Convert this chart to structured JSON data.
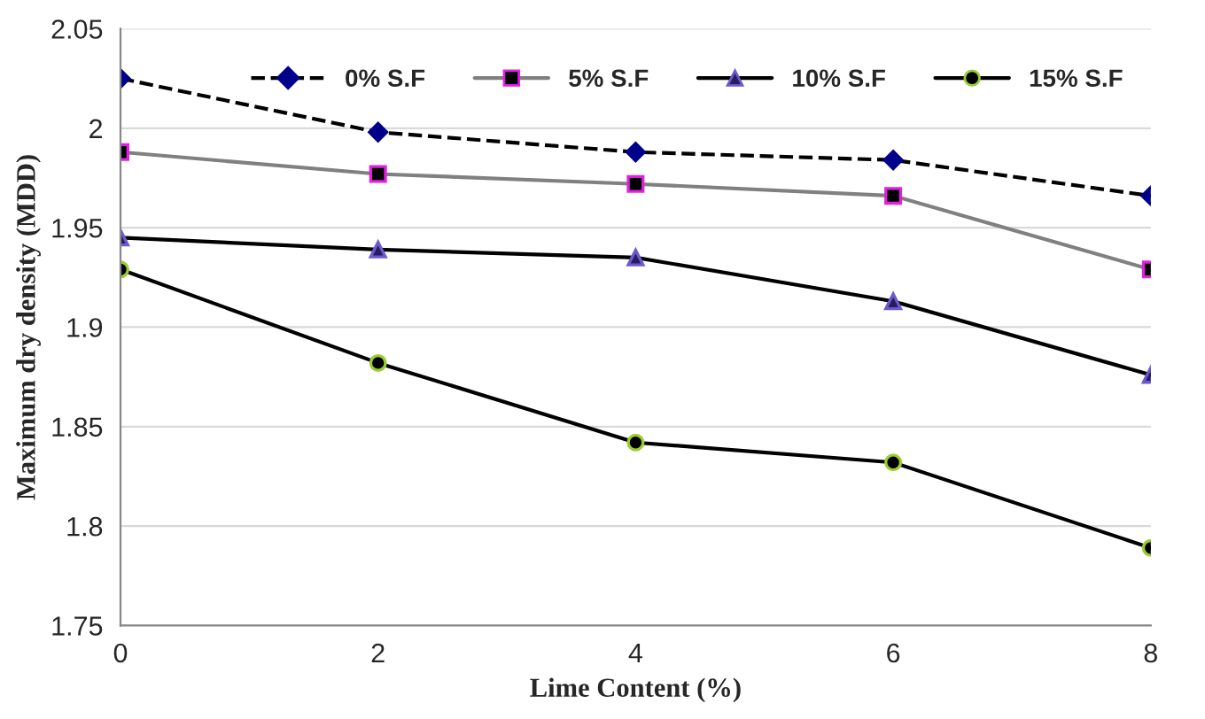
{
  "chart_data": {
    "type": "line",
    "xlabel": "Lime Content (%)",
    "ylabel": "Maximum dry density (MDD)",
    "x": [
      0,
      2,
      4,
      6,
      8
    ],
    "series": [
      {
        "name": "0% S.F",
        "color": "#00008b",
        "marker": "diamond",
        "line_style": "dashed",
        "values": [
          2.025,
          1.998,
          1.988,
          1.984,
          1.966
        ]
      },
      {
        "name": "5% S.F",
        "color": "#000000",
        "marker": "square",
        "line_style": "solid",
        "values": [
          1.988,
          1.977,
          1.972,
          1.966,
          1.929
        ]
      },
      {
        "name": "10% S.F",
        "color": "#2a1a5e",
        "marker": "triangle",
        "line_style": "solid",
        "values": [
          1.945,
          1.939,
          1.935,
          1.913,
          1.876
        ]
      },
      {
        "name": "15% S.F",
        "color": "#000000",
        "marker": "circle",
        "line_style": "solid",
        "values": [
          1.929,
          1.882,
          1.842,
          1.832,
          1.789
        ]
      }
    ],
    "xlim": [
      0,
      8
    ],
    "xticks": [
      0,
      2,
      4,
      6,
      8
    ],
    "ylim": [
      1.75,
      2.05
    ],
    "yticks": [
      {
        "value": 1.75,
        "label": "1.75"
      },
      {
        "value": 1.8,
        "label": "1.8"
      },
      {
        "value": 1.85,
        "label": "1.85"
      },
      {
        "value": 1.9,
        "label": "1.9"
      },
      {
        "value": 1.95,
        "label": "1.95"
      },
      {
        "value": 2.0,
        "label": "2"
      },
      {
        "value": 2.05,
        "label": "2.05"
      }
    ],
    "grid": "y",
    "legend": "top"
  }
}
